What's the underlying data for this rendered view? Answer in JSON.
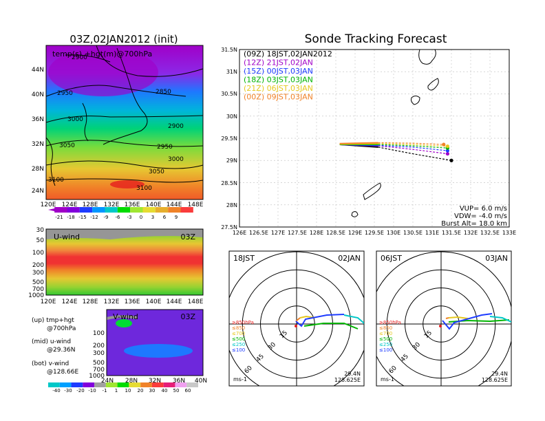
{
  "map_panel": {
    "title": "03Z,02JAN2012 (init)",
    "subtitle": "temp(s) +hgt(m)@700hPa",
    "lat_labels": [
      "44N",
      "40N",
      "36N",
      "32N",
      "28N",
      "24N"
    ],
    "lon_labels": [
      "120E",
      "124E",
      "128E",
      "132E",
      "136E",
      "140E",
      "144E",
      "148E"
    ],
    "contour_labels": [
      "2900",
      "2850",
      "2950",
      "3000",
      "2900",
      "3050",
      "2950",
      "3000",
      "3050",
      "3100",
      "3100"
    ],
    "colorbar_labels": [
      "-21",
      "-18",
      "-15",
      "-12",
      "-9",
      "-6",
      "-3",
      "0",
      "3",
      "6",
      "9"
    ],
    "colorbar_colors": [
      "#a000c8",
      "#8200dc",
      "#1e3cff",
      "#0096ff",
      "#00c8c8",
      "#00dc00",
      "#a0e632",
      "#e6dc32",
      "#e6af2d",
      "#f08228",
      "#fa3c3c"
    ]
  },
  "u_panel": {
    "title": "U-wind",
    "time": "03Z",
    "p_labels": [
      "30",
      "50",
      "100",
      "200",
      "300",
      "500",
      "700",
      "1000"
    ],
    "lon_labels": [
      "120E",
      "124E",
      "128E",
      "132E",
      "136E",
      "140E",
      "144E",
      "148E"
    ]
  },
  "v_panel": {
    "title": "V-wind",
    "time": "03Z",
    "p_labels": [
      "100",
      "200",
      "300",
      "500",
      "700",
      "1000"
    ],
    "lat_labels": [
      "24N",
      "28N",
      "32N",
      "36N",
      "40N"
    ]
  },
  "legend": {
    "up_1": "(up) tmp+hgt",
    "up_2": "@700hPa",
    "mid_1": "(mid) u-wind",
    "mid_2": "@29.36N",
    "bot_1": "(bot) v-wind",
    "bot_2": "@128.66E"
  },
  "wind_colorbar": {
    "labels": [
      "-40",
      "-30",
      "-20",
      "-10",
      "-1",
      "1",
      "10",
      "20",
      "30",
      "40",
      "50",
      "60"
    ],
    "colors": [
      "#00c8c8",
      "#00a0ff",
      "#1e3cff",
      "#8200dc",
      "#a0a0a0",
      "#a0e632",
      "#00dc00",
      "#e6dc32",
      "#f08228",
      "#fa3c3c",
      "#e61e78",
      "#f0a0f0",
      "#c8c8c8"
    ]
  },
  "tracking": {
    "title": "Sonde Tracking Forecast",
    "entries": [
      {
        "label": "(09Z) 18JST,02JAN2012",
        "color": "#000000"
      },
      {
        "label": "(12Z) 21JST,02JAN",
        "color": "#a000c8"
      },
      {
        "label": "(15Z) 00JST,03JAN",
        "color": "#1e3cff"
      },
      {
        "label": "(18Z) 03JST,03JAN",
        "color": "#00b400"
      },
      {
        "label": "(21Z) 06JST,03JAN",
        "color": "#e6c81e"
      },
      {
        "label": "(00Z) 09JST,03JAN",
        "color": "#f08228"
      }
    ],
    "vup": "VUP= 6.0 m/s",
    "vdw": "VDW= -4.0 m/s",
    "burst": "Burst Alt= 18.0 km",
    "lat_labels": [
      "31.5N",
      "31N",
      "30.5N",
      "30N",
      "29.5N",
      "29N",
      "28.5N",
      "28N",
      "27.5N"
    ],
    "lon_labels": [
      "126E",
      "126.5E",
      "127E",
      "127.5E",
      "128E",
      "128.5E",
      "129E",
      "129.5E",
      "130E",
      "130.5E",
      "131E",
      "131.5E",
      "132E",
      "132.5E",
      "133E"
    ]
  },
  "chart_data": {
    "type": "line",
    "title": "Sonde Tracking Forecast",
    "xlim": [
      126,
      133
    ],
    "ylim": [
      27.5,
      31.5
    ],
    "series": [
      {
        "name": "(09Z) 18JST,02JAN2012",
        "x": [
          128.6,
          129.6,
          130.5,
          131.5
        ],
        "y": [
          29.36,
          29.3,
          29.15,
          29.0
        ]
      },
      {
        "name": "(12Z) 21JST,02JAN",
        "x": [
          128.6,
          129.6,
          130.5,
          131.4
        ],
        "y": [
          29.36,
          29.33,
          29.25,
          29.15
        ]
      },
      {
        "name": "(15Z) 00JST,03JAN",
        "x": [
          128.6,
          129.6,
          130.5,
          131.4
        ],
        "y": [
          29.36,
          29.34,
          29.3,
          29.22
        ]
      },
      {
        "name": "(18Z) 03JST,03JAN",
        "x": [
          128.6,
          129.6,
          130.5,
          131.4
        ],
        "y": [
          29.36,
          29.36,
          29.33,
          29.28
        ]
      },
      {
        "name": "(21Z) 06JST,03JAN",
        "x": [
          128.6,
          129.6,
          130.5,
          131.4
        ],
        "y": [
          29.37,
          29.38,
          29.36,
          29.32
        ]
      },
      {
        "name": "(00Z) 09JST,03JAN",
        "x": [
          128.6,
          129.6,
          130.5,
          131.3
        ],
        "y": [
          29.38,
          29.4,
          29.39,
          29.36
        ]
      }
    ]
  },
  "hodo_left": {
    "time": "18JST",
    "date": "02JAN",
    "ring_labels": [
      "15",
      "30",
      "45",
      "60"
    ],
    "p_labels": [
      {
        "label": "≥850hPa",
        "color": "#e61e1e"
      },
      {
        "label": "≤850",
        "color": "#f08228"
      },
      {
        "label": "≤700",
        "color": "#e6c81e"
      },
      {
        "label": "≤500",
        "color": "#00b400"
      },
      {
        "label": "≤250",
        "color": "#00c8c8"
      },
      {
        "label": "≤100",
        "color": "#1e3cff"
      }
    ],
    "unit": "ms-1",
    "lat": "29.4N",
    "lon": "128.625E"
  },
  "hodo_right": {
    "time": "06JST",
    "date": "03JAN",
    "ring_labels": [
      "15",
      "30",
      "45",
      "60"
    ],
    "p_labels": [
      {
        "label": "≥850hPa",
        "color": "#e61e1e"
      },
      {
        "label": "≤850",
        "color": "#f08228"
      },
      {
        "label": "≤700",
        "color": "#e6c81e"
      },
      {
        "label": "≤500",
        "color": "#00b400"
      },
      {
        "label": "≤250",
        "color": "#00c8c8"
      },
      {
        "label": "≤100",
        "color": "#1e3cff"
      }
    ],
    "unit": "ms-1",
    "lat": "29.4N",
    "lon": "128.625E"
  }
}
